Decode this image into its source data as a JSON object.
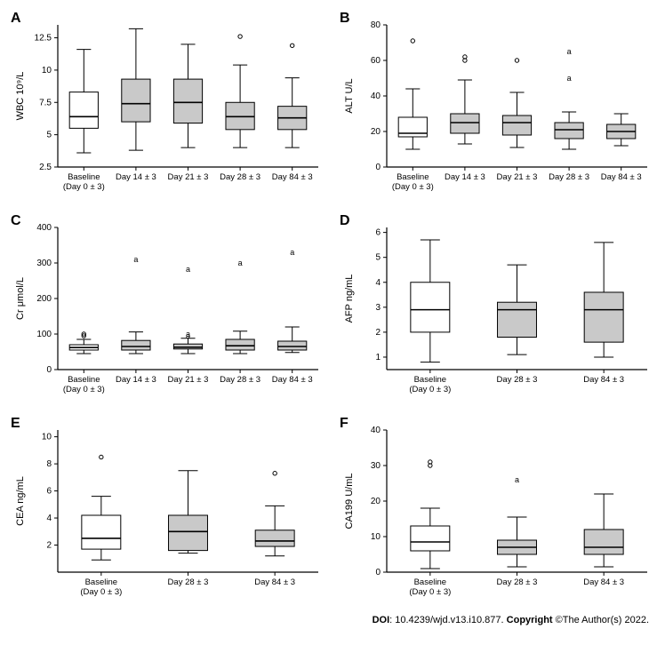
{
  "footer": {
    "doi_label": "DOI",
    "doi": "10.4239/wjd.v13.i10.877.",
    "copyright_label": "Copyright",
    "copyright": "©The Author(s) 2022."
  },
  "global": {
    "box_fill_baseline": "#ffffff",
    "box_fill_other": "#c9c9c9",
    "stroke": "#000000",
    "axis_font_size": 11,
    "tick_font_size": 10,
    "plot_bg": "#ffffff"
  },
  "panels": {
    "A": {
      "ylabel": "WBC 10⁹/L",
      "ylim": [
        2.5,
        13.5
      ],
      "yticks": [
        2.5,
        5.0,
        7.5,
        10.0,
        12.5
      ],
      "categories": [
        "Baseline\n(Day 0 ± 3)",
        "Day 14 ± 3",
        "Day 21 ± 3",
        "Day 28 ± 3",
        "Day 84 ± 3"
      ],
      "boxes": [
        {
          "min": 3.6,
          "q1": 5.5,
          "med": 6.4,
          "q3": 8.3,
          "max": 11.6,
          "outliers": []
        },
        {
          "min": 3.8,
          "q1": 6.0,
          "med": 7.4,
          "q3": 9.3,
          "max": 13.2,
          "outliers": []
        },
        {
          "min": 4.0,
          "q1": 5.9,
          "med": 7.5,
          "q3": 9.3,
          "max": 12.0,
          "outliers": []
        },
        {
          "min": 4.0,
          "q1": 5.4,
          "med": 6.4,
          "q3": 7.5,
          "max": 10.4,
          "outliers": [
            12.6
          ]
        },
        {
          "min": 4.0,
          "q1": 5.4,
          "med": 6.3,
          "q3": 7.2,
          "max": 9.4,
          "outliers": [
            11.9
          ]
        }
      ]
    },
    "B": {
      "ylabel": "ALT U/L",
      "ylim": [
        0,
        80
      ],
      "yticks": [
        0,
        20,
        40,
        60,
        80
      ],
      "categories": [
        "Baseline\n(Day 0 ± 3)",
        "Day 14 ± 3",
        "Day 21 ± 3",
        "Day 28 ± 3",
        "Day 84 ± 3"
      ],
      "boxes": [
        {
          "min": 10,
          "q1": 17,
          "med": 19,
          "q3": 28,
          "max": 44,
          "outliers": [
            71
          ]
        },
        {
          "min": 13,
          "q1": 19,
          "med": 25,
          "q3": 30,
          "max": 49,
          "outliers": [
            60,
            62
          ]
        },
        {
          "min": 11,
          "q1": 18,
          "med": 25,
          "q3": 29,
          "max": 42,
          "outliers": [
            60
          ]
        },
        {
          "min": 10,
          "q1": 16,
          "med": 21,
          "q3": 25,
          "max": 31,
          "outliers": [
            50,
            65
          ],
          "outlier_marker": "a"
        },
        {
          "min": 12,
          "q1": 16,
          "med": 20,
          "q3": 24,
          "max": 30,
          "outliers": []
        }
      ]
    },
    "C": {
      "ylabel": "Cr μmol/L",
      "ylim": [
        0,
        400
      ],
      "yticks": [
        0,
        100,
        200,
        300,
        400
      ],
      "categories": [
        "Baseline\n(Day 0 ± 3)",
        "Day 14 ± 3",
        "Day 21 ± 3",
        "Day 28 ± 3",
        "Day 84 ± 3"
      ],
      "boxes": [
        {
          "min": 45,
          "q1": 55,
          "med": 62,
          "q3": 70,
          "max": 85,
          "outliers": [
            95,
            100
          ]
        },
        {
          "min": 45,
          "q1": 55,
          "med": 65,
          "q3": 82,
          "max": 106,
          "outliers": [
            310
          ],
          "outlier_marker": "a"
        },
        {
          "min": 45,
          "q1": 58,
          "med": 63,
          "q3": 72,
          "max": 88,
          "outliers": [
            95,
            100,
            282
          ],
          "outlier_marker": "a"
        },
        {
          "min": 45,
          "q1": 55,
          "med": 67,
          "q3": 85,
          "max": 108,
          "outliers": [
            300
          ],
          "outlier_marker": "a"
        },
        {
          "min": 48,
          "q1": 55,
          "med": 65,
          "q3": 80,
          "max": 120,
          "outliers": [
            330
          ],
          "outlier_marker": "a"
        }
      ]
    },
    "D": {
      "ylabel": "AFP ng/mL",
      "ylim": [
        0.5,
        6.2
      ],
      "yticks": [
        1,
        2,
        3,
        4,
        5,
        6
      ],
      "categories": [
        "Baseline\n(Day 0 ± 3)",
        "Day 28 ± 3",
        "Day 84 ± 3"
      ],
      "boxes": [
        {
          "min": 0.8,
          "q1": 2.0,
          "med": 2.9,
          "q3": 4.0,
          "max": 5.7,
          "outliers": []
        },
        {
          "min": 1.1,
          "q1": 1.8,
          "med": 2.9,
          "q3": 3.2,
          "max": 4.7,
          "outliers": []
        },
        {
          "min": 1.0,
          "q1": 1.6,
          "med": 2.9,
          "q3": 3.6,
          "max": 5.6,
          "outliers": []
        }
      ]
    },
    "E": {
      "ylabel": "CEA ng/mL",
      "ylim": [
        0,
        10.5
      ],
      "yticks": [
        2,
        4,
        6,
        8,
        10
      ],
      "categories": [
        "Baseline\n(Day 0 ± 3)",
        "Day 28 ± 3",
        "Day 84 ± 3"
      ],
      "boxes": [
        {
          "min": 0.9,
          "q1": 1.7,
          "med": 2.5,
          "q3": 4.2,
          "max": 5.6,
          "outliers": [
            8.5
          ]
        },
        {
          "min": 1.4,
          "q1": 1.6,
          "med": 3.0,
          "q3": 4.2,
          "max": 7.5,
          "outliers": []
        },
        {
          "min": 1.2,
          "q1": 1.9,
          "med": 2.3,
          "q3": 3.1,
          "max": 4.9,
          "outliers": [
            7.3
          ]
        }
      ]
    },
    "F": {
      "ylabel": "CA199 U/mL",
      "ylim": [
        0,
        40
      ],
      "yticks": [
        0,
        10,
        20,
        30,
        40
      ],
      "categories": [
        "Baseline\n(Day 0 ± 3)",
        "Day 28 ± 3",
        "Day 84 ± 3"
      ],
      "boxes": [
        {
          "min": 1,
          "q1": 6,
          "med": 8.5,
          "q3": 13,
          "max": 18,
          "outliers": [
            30,
            31
          ]
        },
        {
          "min": 1.5,
          "q1": 5,
          "med": 7,
          "q3": 9,
          "max": 15.5,
          "outliers": [
            26
          ],
          "outlier_marker": "a"
        },
        {
          "min": 1.5,
          "q1": 5,
          "med": 7,
          "q3": 12,
          "max": 22,
          "outliers": []
        }
      ]
    }
  }
}
